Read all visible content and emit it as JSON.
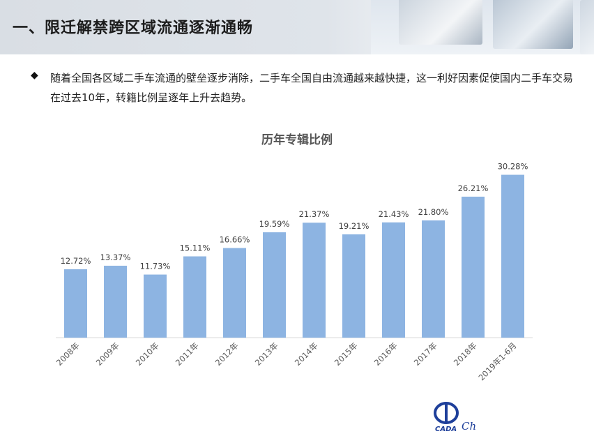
{
  "header": {
    "title": "一、限迁解禁跨区域流通逐渐通畅"
  },
  "bullet": {
    "icon": "diamond-bullet-icon",
    "text": "随着全国各区域二手车流通的壁垒逐步消除，二手车全国自由流通越来越快捷，这一利好因素促使国内二手车交易在过去10年，转籍比例呈逐年上升去趋势。"
  },
  "chart_data": {
    "type": "bar",
    "title": "历年专辑比例",
    "categories": [
      "2008年",
      "2009年",
      "2010年",
      "2011年",
      "2012年",
      "2013年",
      "2014年",
      "2015年",
      "2016年",
      "2017年",
      "2018年",
      "2019年1-6月"
    ],
    "values": [
      12.72,
      13.37,
      11.73,
      15.11,
      16.66,
      19.59,
      21.37,
      19.21,
      21.43,
      21.8,
      26.21,
      30.28
    ],
    "data_labels": [
      "12.72%",
      "13.37%",
      "11.73%",
      "15.11%",
      "16.66%",
      "19.59%",
      "21.37%",
      "19.21%",
      "21.43%",
      "21.80%",
      "26.21%",
      "30.28%"
    ],
    "ylim": [
      0,
      31
    ],
    "bar_color": "#8db4e2",
    "grid": false,
    "legend": "none"
  },
  "logo": {
    "text": "CADA",
    "script_fragment": "Ch"
  }
}
